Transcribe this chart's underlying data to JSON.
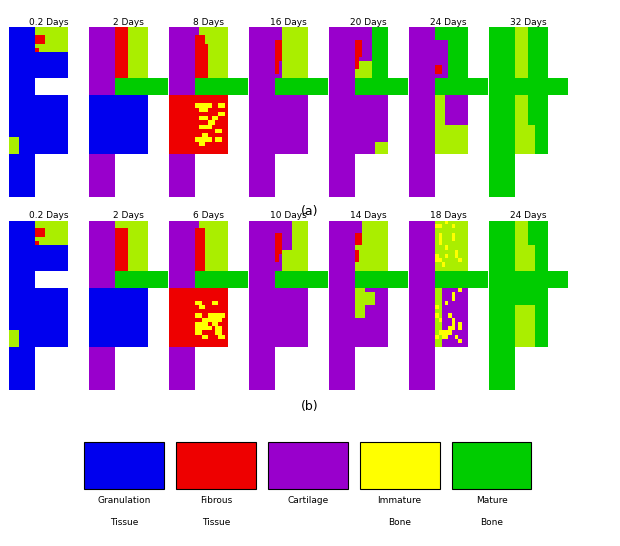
{
  "panel_a_labels": [
    "0.2 Days",
    "2 Days",
    "8 Days",
    "16 Days",
    "20 Days",
    "24 Days",
    "32 Days"
  ],
  "panel_b_labels": [
    "0.2 Days",
    "2 Days",
    "6 Days",
    "10 Days",
    "14 Days",
    "18 Days",
    "24 Days"
  ],
  "label_a": "(a)",
  "label_b": "(b)",
  "colors": {
    "granulation": "#0000EE",
    "fibrous": "#EE0000",
    "cartilage": "#9900CC",
    "immature": "#FFFF00",
    "mature": "#00CC00",
    "lime": "#AAEE00",
    "white": "#FFFFFF",
    "green_bg": "#00BB00"
  },
  "legend_labels": [
    "Granulation\nTissue",
    "Fibrous\nTissue",
    "Cartilage",
    "Immature\nBone",
    "Mature\nBone"
  ],
  "legend_colors": [
    "#0000EE",
    "#EE0000",
    "#9900CC",
    "#FFFF00",
    "#00CC00"
  ]
}
